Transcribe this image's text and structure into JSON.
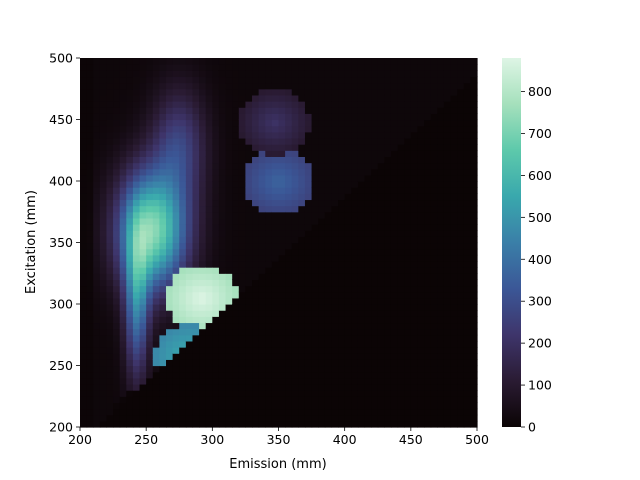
{
  "chart_data": {
    "type": "heatmap",
    "title": "",
    "xlabel": "Emission (mm)",
    "ylabel": "Excitation (mm)",
    "xlim": [
      200,
      500
    ],
    "ylim": [
      200,
      500
    ],
    "x_ticks": [
      "200",
      "250",
      "300",
      "350",
      "400",
      "450",
      "500"
    ],
    "y_ticks": [
      "200",
      "250",
      "300",
      "350",
      "400",
      "450",
      "500"
    ],
    "colorbar": {
      "range": [
        0,
        880
      ],
      "ticks": [
        "0",
        "100",
        "200",
        "300",
        "400",
        "500",
        "600",
        "700",
        "800"
      ],
      "colormap": "mako",
      "colors": [
        "#0b0405",
        "#2a1b33",
        "#3e356b",
        "#3b5797",
        "#3a7fa8",
        "#39a8ad",
        "#5dc9ab",
        "#a5e0bc",
        "#def5e5"
      ]
    },
    "masked_region": "Emission < Excitation (lower-right triangle is zero)",
    "features": [
      {
        "name": "broad band",
        "emission_center": 255,
        "excitation_center": 360,
        "peak_value": 700
      },
      {
        "name": "spot",
        "emission": 292,
        "excitation": 305,
        "value": 880
      },
      {
        "name": "spot",
        "emission": 283,
        "excitation": 257,
        "value": 570
      },
      {
        "name": "spot",
        "emission": 350,
        "excitation": 400,
        "value": 370
      },
      {
        "name": "spot",
        "emission": 347,
        "excitation": 448,
        "value": 210
      }
    ],
    "grid": false,
    "legend": "none"
  }
}
